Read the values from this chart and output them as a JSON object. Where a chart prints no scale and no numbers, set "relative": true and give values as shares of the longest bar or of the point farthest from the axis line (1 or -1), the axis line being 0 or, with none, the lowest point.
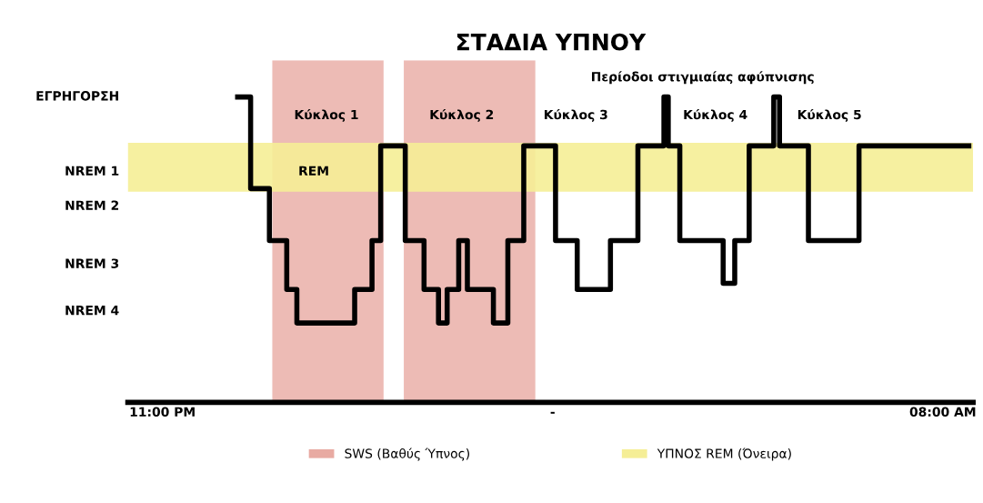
{
  "chart_data": {
    "type": "step",
    "title": "ΣΤΑΔΙΑ ΥΠΝΟΥ",
    "relative": true,
    "x": [
      "2000-01-01T23:52",
      "2000-01-02T00:01",
      "2000-01-02T00:14",
      "2000-01-02T00:26",
      "2000-01-02T00:33",
      "2000-01-02T01:13",
      "2000-01-02T01:25",
      "2000-01-02T01:31",
      "2000-01-02T01:48",
      "2000-01-02T02:01",
      "2000-01-02T02:11",
      "2000-01-02T02:17",
      "2000-01-02T02:25",
      "2000-01-02T02:31",
      "2000-01-02T02:49",
      "2000-01-02T02:59",
      "2000-01-02T03:10",
      "2000-01-02T03:32",
      "2000-01-02T03:47",
      "2000-01-02T04:10",
      "2000-01-02T04:29",
      "2000-01-02T04:47",
      "2000-01-02T04:50",
      "2000-01-02T04:58",
      "2000-01-02T05:28",
      "2000-01-02T05:36",
      "2000-01-02T05:46",
      "2000-01-02T06:03",
      "2000-01-02T06:07",
      "2000-01-02T06:27",
      "2000-01-02T07:02",
      "2000-01-02T08:18"
    ],
    "series": [
      {
        "color": "#000000",
        "values": [
          1,
          0.7,
          0.53,
          0.37,
          0.26,
          0.37,
          0.53,
          0.84,
          0.53,
          0.37,
          0.26,
          0.37,
          0.53,
          0.37,
          0.26,
          0.53,
          0.84,
          0.53,
          0.37,
          0.53,
          0.84,
          1,
          0.84,
          0.53,
          0.39,
          0.53,
          0.84,
          1,
          0.84,
          0.53,
          0.84,
          0.84
        ]
      }
    ],
    "xlim": [
      "2000-01-01T22:36",
      "2000-01-02T08:21"
    ],
    "xticks": [
      {
        "value": "2000-01-01T23:00",
        "label": "11:00 PM"
      },
      {
        "value": "2000-01-02T03:30",
        "label": "-"
      },
      {
        "value": "2000-01-02T08:00",
        "label": "08:00 AM"
      }
    ],
    "bands": [
      {
        "axis": "x",
        "from": "2000-01-02T00:16",
        "to": "2000-01-02T01:33",
        "label": "SWS (Βαθύς Ύπνος)",
        "color": "#e8aaa2"
      },
      {
        "axis": "x",
        "from": "2000-01-02T01:47",
        "to": "2000-01-02T03:18",
        "color": "#e8aaa2"
      },
      {
        "axis": "y",
        "from": 0.69,
        "to": 0.85,
        "label": "ΥΠΝΟΣ REM (Όνειρα)",
        "color": "#f5ee96"
      }
    ],
    "annotations": [
      "ΕΓΡΗΓΟΡΣΗ",
      "NREM 1",
      "NREM 2",
      "NREM 3",
      "NREM 4",
      "Κύκλος 1",
      "Κύκλος 2",
      "Κύκλος 3",
      "Κύκλος 4",
      "Κύκλος 5",
      "REM",
      "Περίοδοι στιγμιαίας αφύπνισης"
    ],
    "legend": "bottom",
    "grid": false,
    "line_style": "solid",
    "marker": "none"
  }
}
